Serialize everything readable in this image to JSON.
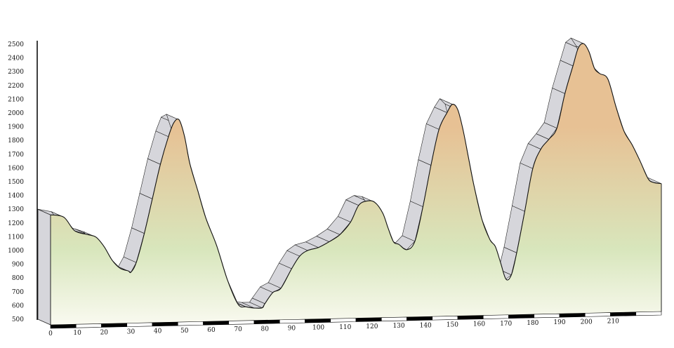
{
  "chart_data": {
    "type": "area",
    "title": "",
    "xlabel": "",
    "ylabel": "",
    "xlim": [
      0,
      228
    ],
    "ylim": [
      500,
      2500
    ],
    "x_ticks": [
      0,
      10,
      20,
      30,
      40,
      50,
      60,
      70,
      80,
      90,
      100,
      110,
      120,
      130,
      140,
      150,
      160,
      170,
      180,
      190,
      200,
      210
    ],
    "y_ticks": [
      500,
      600,
      700,
      800,
      900,
      1000,
      1100,
      1200,
      1300,
      1400,
      1500,
      1600,
      1700,
      1800,
      1900,
      2000,
      2100,
      2200,
      2300,
      2400,
      2500
    ],
    "series": [
      {
        "x": [
          0,
          5,
          9,
          14,
          17,
          20,
          23,
          26,
          29,
          30,
          32,
          35,
          38,
          41,
          44,
          46,
          48,
          50,
          52,
          55,
          58,
          62,
          66,
          70,
          73,
          76,
          79,
          80,
          83,
          86,
          90,
          93,
          96,
          100,
          104,
          108,
          112,
          115,
          118,
          121,
          124,
          126,
          128,
          130,
          133,
          136,
          139,
          142,
          145,
          148,
          150,
          152,
          154,
          156,
          158,
          161,
          164,
          166,
          168,
          170,
          172,
          174,
          177,
          180,
          183,
          186,
          189,
          192,
          195,
          197,
          199,
          201,
          203,
          205,
          208,
          211,
          214,
          217,
          220,
          223,
          225,
          228
        ],
        "y": [
          1300,
          1280,
          1180,
          1150,
          1130,
          1060,
          960,
          900,
          880,
          870,
          940,
          1150,
          1400,
          1650,
          1850,
          1950,
          1970,
          1850,
          1650,
          1450,
          1250,
          1050,
          800,
          620,
          600,
          590,
          590,
          620,
          700,
          730,
          870,
          960,
          1000,
          1020,
          1060,
          1110,
          1200,
          1320,
          1350,
          1340,
          1260,
          1150,
          1050,
          1030,
          990,
          1050,
          1300,
          1600,
          1860,
          1980,
          2040,
          2000,
          1850,
          1650,
          1450,
          1200,
          1050,
          1000,
          880,
          760,
          790,
          950,
          1250,
          1560,
          1700,
          1770,
          1850,
          2100,
          2300,
          2430,
          2460,
          2400,
          2280,
          2240,
          2200,
          2000,
          1820,
          1720,
          1600,
          1470,
          1440,
          1430
        ]
      }
    ],
    "grid": false,
    "legend": "none",
    "colors": {
      "fill_low": "#fafaf1",
      "fill_mid": "#d8e6bc",
      "fill_high": "#e7c194",
      "wall": "#d6d6db",
      "axis": "#000000"
    }
  }
}
